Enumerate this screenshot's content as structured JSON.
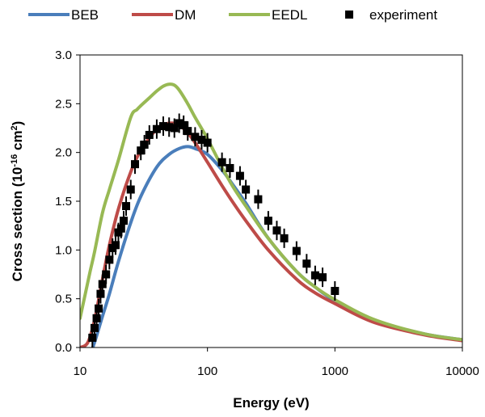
{
  "chart_data": {
    "type": "line",
    "xlabel": "Energy (eV)",
    "ylabel": {
      "main": "Cross section (10",
      "exp": "-16",
      "rest": " cm",
      "sup2": "2",
      "end": ")"
    },
    "xscale": "log",
    "xlim": [
      10,
      10000
    ],
    "ylim": [
      0,
      3.0
    ],
    "x_ticks": [
      10,
      100,
      1000,
      10000
    ],
    "x_tick_labels": [
      "10",
      "100",
      "1000",
      "10000"
    ],
    "y_ticks": [
      0,
      0.5,
      1.0,
      1.5,
      2.0,
      2.5,
      3.0
    ],
    "y_tick_labels": [
      "0.0",
      "0.5",
      "1.0",
      "1.5",
      "2.0",
      "2.5",
      "3.0"
    ],
    "grid": false,
    "legend_position": "top",
    "series": [
      {
        "name": "BEB",
        "color": "#4a7ebb",
        "kind": "line",
        "x": [
          12.6,
          13.5,
          15,
          17,
          20,
          25,
          30,
          40,
          50,
          60,
          70,
          80,
          100,
          130,
          160,
          200,
          300,
          500,
          700,
          1000,
          2000,
          5000,
          10000
        ],
        "y": [
          0,
          0.12,
          0.32,
          0.55,
          0.88,
          1.28,
          1.55,
          1.85,
          1.98,
          2.04,
          2.06,
          2.04,
          1.98,
          1.82,
          1.66,
          1.48,
          1.12,
          0.78,
          0.62,
          0.48,
          0.28,
          0.14,
          0.08
        ]
      },
      {
        "name": "DM",
        "color": "#be4b48",
        "kind": "line",
        "x": [
          10,
          11.5,
          13,
          15,
          17,
          20,
          25,
          30,
          40,
          50,
          60,
          70,
          80,
          100,
          130,
          160,
          200,
          300,
          500,
          700,
          1000,
          2000,
          5000,
          10000
        ],
        "y": [
          0,
          0.05,
          0.28,
          0.7,
          1.05,
          1.42,
          1.8,
          2.02,
          2.24,
          2.3,
          2.28,
          2.2,
          2.1,
          1.9,
          1.66,
          1.48,
          1.3,
          1.0,
          0.7,
          0.56,
          0.45,
          0.26,
          0.13,
          0.07
        ]
      },
      {
        "name": "EEDL",
        "color": "#98b954",
        "kind": "line",
        "x": [
          10,
          11,
          12,
          13,
          15,
          17,
          20,
          25,
          28,
          30,
          35,
          40,
          45,
          50,
          55,
          60,
          70,
          80,
          100,
          130,
          160,
          200,
          300,
          500,
          700,
          1000,
          2000,
          5000,
          10000
        ],
        "y": [
          0.3,
          0.55,
          0.78,
          0.98,
          1.38,
          1.62,
          1.92,
          2.36,
          2.44,
          2.48,
          2.56,
          2.63,
          2.68,
          2.7,
          2.69,
          2.64,
          2.5,
          2.36,
          2.14,
          1.85,
          1.64,
          1.45,
          1.12,
          0.78,
          0.62,
          0.49,
          0.29,
          0.14,
          0.08
        ]
      },
      {
        "name": "experiment",
        "color": "#000000",
        "kind": "scatter",
        "x": [
          12.5,
          13,
          13.5,
          14,
          14.5,
          15,
          16,
          17,
          18,
          19,
          20,
          21,
          22,
          23,
          25,
          27,
          30,
          32,
          35,
          40,
          45,
          50,
          55,
          60,
          65,
          70,
          80,
          90,
          100,
          130,
          150,
          180,
          200,
          250,
          300,
          350,
          400,
          500,
          600,
          700,
          800,
          1000
        ],
        "y": [
          0.1,
          0.2,
          0.3,
          0.4,
          0.55,
          0.65,
          0.75,
          0.9,
          1.02,
          1.05,
          1.18,
          1.22,
          1.3,
          1.45,
          1.62,
          1.88,
          2.02,
          2.08,
          2.18,
          2.24,
          2.27,
          2.26,
          2.25,
          2.3,
          2.28,
          2.22,
          2.16,
          2.13,
          2.1,
          1.9,
          1.84,
          1.76,
          1.62,
          1.52,
          1.3,
          1.2,
          1.12,
          0.99,
          0.86,
          0.74,
          0.72,
          0.58
        ]
      }
    ]
  }
}
